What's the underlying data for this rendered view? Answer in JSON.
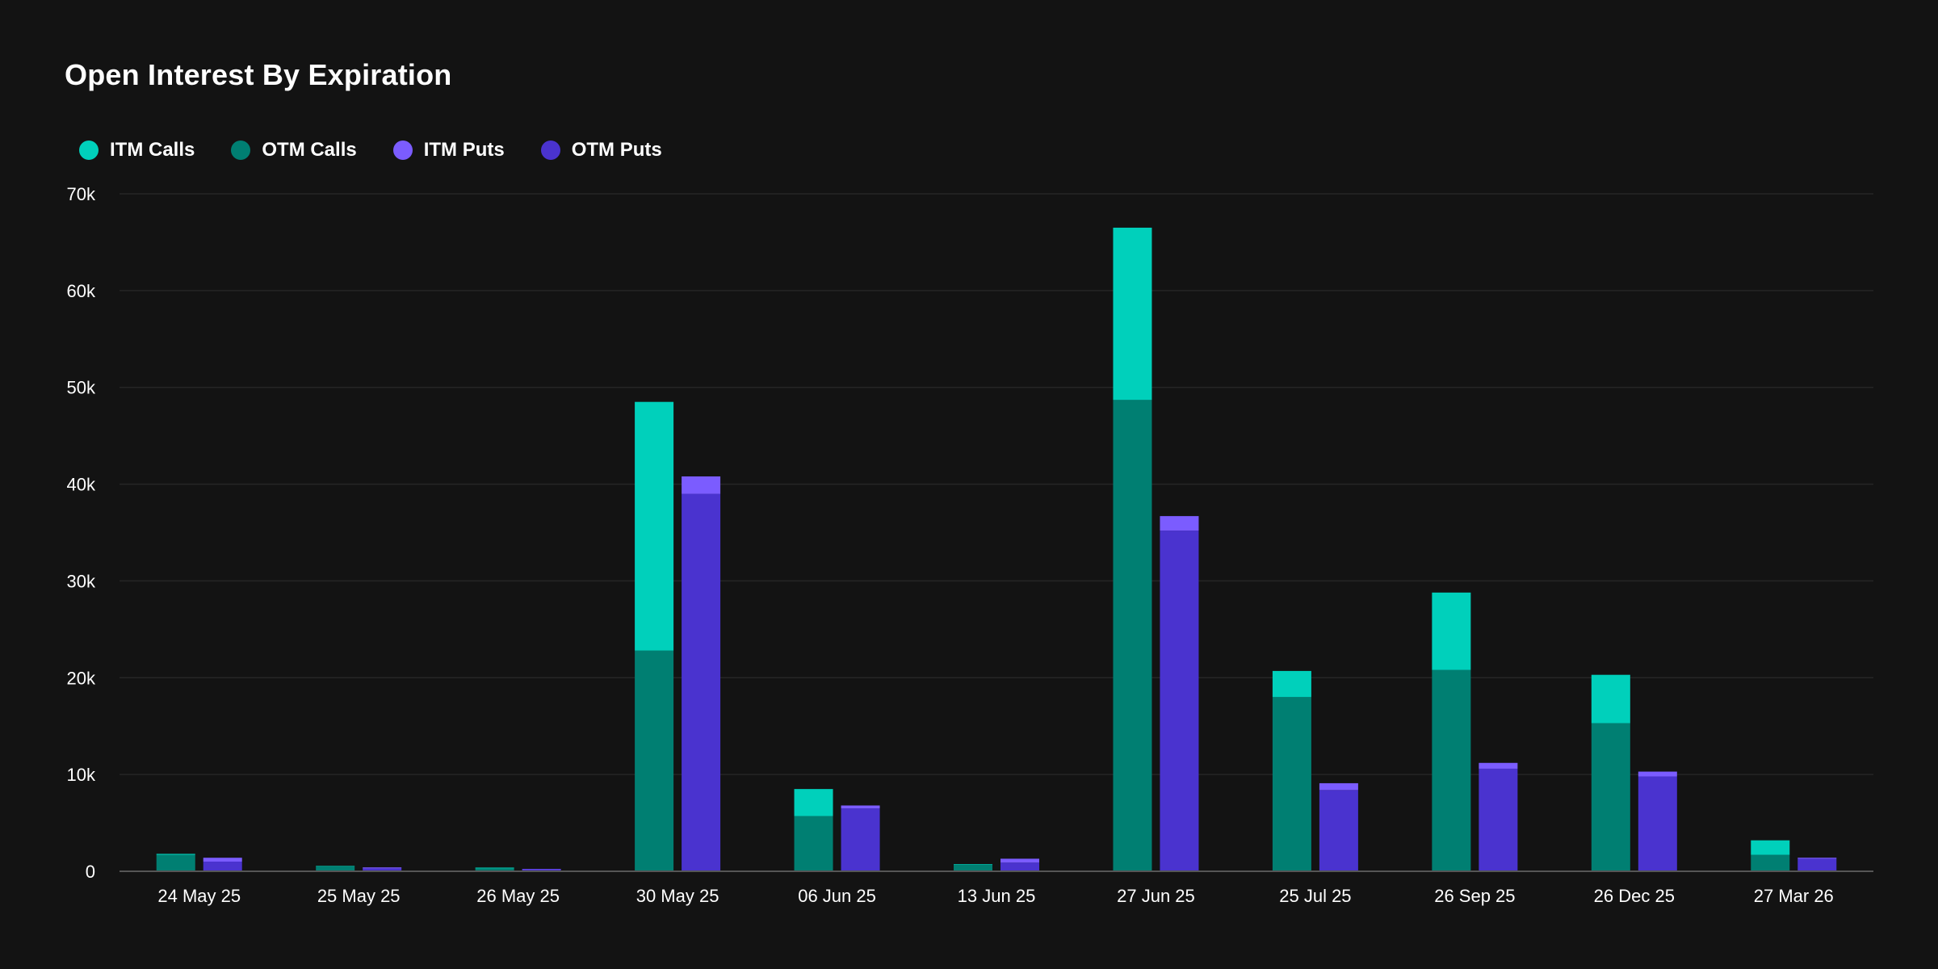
{
  "chart_data": {
    "type": "bar",
    "title": "Open Interest By Expiration",
    "xlabel": "",
    "ylabel": "",
    "ylim": [
      0,
      70000
    ],
    "yticks": [
      {
        "value": 0,
        "label": "0"
      },
      {
        "value": 10000,
        "label": "10k"
      },
      {
        "value": 20000,
        "label": "20k"
      },
      {
        "value": 30000,
        "label": "30k"
      },
      {
        "value": 40000,
        "label": "40k"
      },
      {
        "value": 50000,
        "label": "50k"
      },
      {
        "value": 60000,
        "label": "60k"
      },
      {
        "value": 70000,
        "label": "70k"
      }
    ],
    "grid": true,
    "legend_position": "top-left",
    "stacked": true,
    "categories": [
      "24 May 25",
      "25 May 25",
      "26 May 25",
      "30 May 25",
      "06 Jun 25",
      "13 Jun 25",
      "27 Jun 25",
      "25 Jul 25",
      "26 Sep 25",
      "26 Dec 25",
      "27 Mar 26"
    ],
    "series": [
      {
        "name": "ITM Calls",
        "stack": "calls",
        "color": "#00d0bb",
        "values": [
          100,
          50,
          80,
          25700,
          2800,
          50,
          17800,
          2700,
          8000,
          5000,
          1500
        ]
      },
      {
        "name": "OTM Calls",
        "stack": "calls",
        "color": "#007f72",
        "values": [
          1700,
          500,
          300,
          22800,
          5700,
          700,
          48700,
          18000,
          20800,
          15300,
          1700
        ]
      },
      {
        "name": "ITM Puts",
        "stack": "puts",
        "color": "#7b5cff",
        "values": [
          400,
          100,
          50,
          1800,
          300,
          400,
          1500,
          700,
          600,
          500,
          100
        ]
      },
      {
        "name": "OTM Puts",
        "stack": "puts",
        "color": "#4a33cf",
        "values": [
          1000,
          300,
          200,
          39000,
          6500,
          900,
          35200,
          8400,
          10600,
          9800,
          1300
        ]
      }
    ],
    "colors": {
      "background": "#131313",
      "grid": "#262626",
      "axis": "#555555"
    }
  }
}
